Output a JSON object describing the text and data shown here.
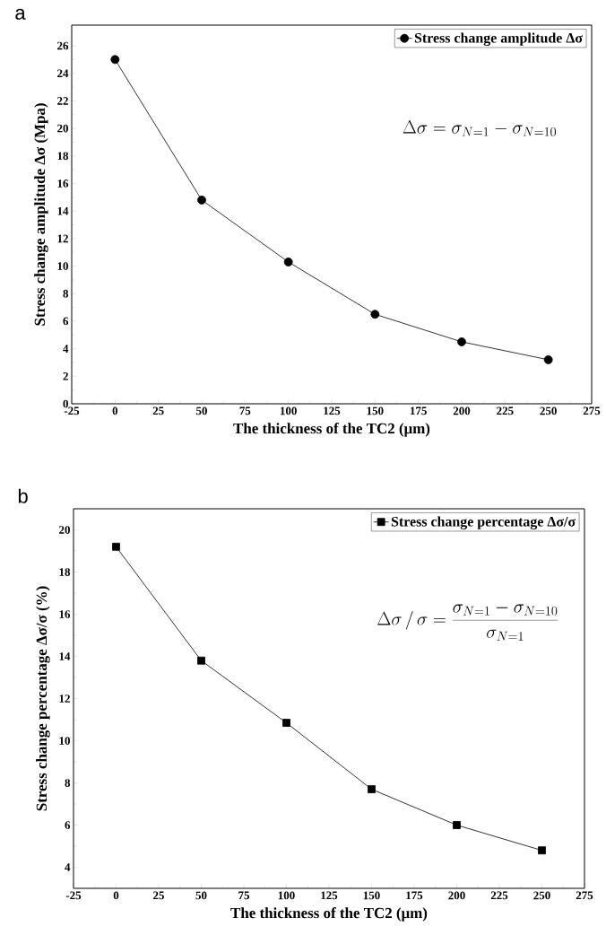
{
  "chart_data": [
    {
      "type": "line",
      "title": "a",
      "xlabel": "The thickness of the TC2 (μm)",
      "ylabel": "Stress change amplitude Δσ (Mpa)",
      "x": [
        0,
        50,
        100,
        150,
        200,
        250
      ],
      "series": [
        {
          "name": "Stress change amplitude Δσ",
          "color": "#000000",
          "values": [
            25.0,
            14.8,
            10.3,
            6.5,
            4.5,
            3.2
          ]
        }
      ],
      "xlim": [
        -25,
        275
      ],
      "ylim": [
        0,
        27.5
      ],
      "xticks": [
        -25,
        0,
        25,
        50,
        75,
        100,
        125,
        150,
        175,
        200,
        225,
        250,
        275
      ],
      "yticks": [
        0,
        2,
        4,
        6,
        8,
        10,
        12,
        14,
        16,
        18,
        20,
        22,
        24,
        26
      ],
      "marker": "circle",
      "legend": "top right",
      "annotations": [
        "\\Delta\\sigma=\\sigma_{N=1}-\\sigma_{N=10}"
      ]
    },
    {
      "type": "line",
      "title": "b",
      "xlabel": "The thickness of the TC2 (μm)",
      "ylabel": "Stress change percentage Δσ/σ (%)",
      "x": [
        0,
        50,
        100,
        150,
        200,
        250
      ],
      "series": [
        {
          "name": "Stress change percentage Δσ/σ",
          "color": "#000000",
          "values": [
            19.2,
            13.8,
            10.85,
            7.7,
            6.0,
            4.8
          ]
        }
      ],
      "xlim": [
        -25,
        275
      ],
      "ylim": [
        3,
        21
      ],
      "xticks": [
        -25,
        0,
        25,
        50,
        75,
        100,
        125,
        150,
        175,
        200,
        225,
        250,
        275
      ],
      "yticks": [
        4,
        6,
        8,
        10,
        12,
        14,
        16,
        18,
        20
      ],
      "marker": "square",
      "legend": "top right",
      "annotations": [
        "\\Delta\\sigma\\,/\\,\\sigma=\\frac{\\sigma_{N=1}-\\sigma_{N=10}}{\\sigma_{N=1}}"
      ]
    }
  ]
}
